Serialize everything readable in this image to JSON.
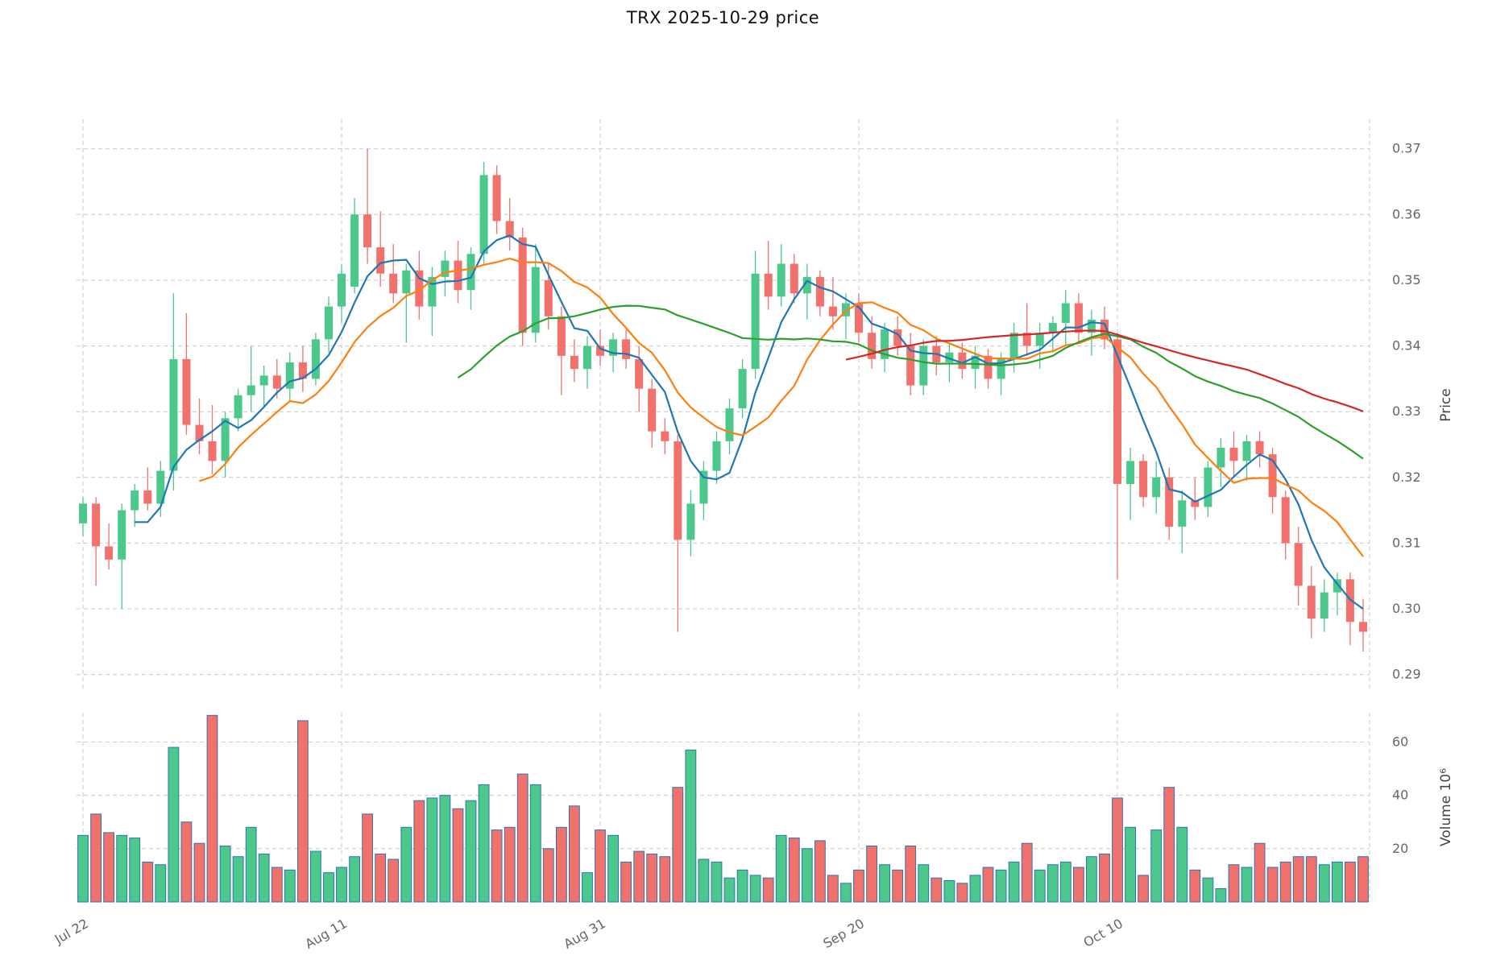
{
  "chart_data": {
    "type": "candlestick",
    "title": "TRX  2025-10-29  price",
    "legend_position": "none",
    "grid": true,
    "colors": {
      "up": "#4dc88c",
      "down": "#f1716d",
      "volume_edge": "#2f74ae",
      "grid": "#c9c9c9",
      "tick_text": "#666666"
    },
    "price_axis": {
      "label": "Price",
      "side": "right",
      "ticks": [
        0.29,
        0.3,
        0.31,
        0.32,
        0.33,
        0.34,
        0.35,
        0.36,
        0.37
      ],
      "range": [
        0.2875,
        0.3745
      ]
    },
    "volume_axis": {
      "label": "Volume  10⁶",
      "side": "right",
      "ticks": [
        20,
        40,
        60
      ],
      "range": [
        0,
        71
      ]
    },
    "x_ticks": [
      {
        "index": 0,
        "label": "Jul 22"
      },
      {
        "index": 20,
        "label": "Aug 11"
      },
      {
        "index": 40,
        "label": "Aug 31"
      },
      {
        "index": 60,
        "label": "Sep 20"
      },
      {
        "index": 80,
        "label": "Oct 10"
      }
    ],
    "moving_averages": [
      {
        "window": 5,
        "color": "#1f77b4"
      },
      {
        "window": 10,
        "color": "#ff7f0e"
      },
      {
        "window": 30,
        "color": "#2ca02c"
      },
      {
        "window": 60,
        "color": "#d62728"
      }
    ],
    "series": {
      "dates": [
        "2025-07-22",
        "2025-07-23",
        "2025-07-24",
        "2025-07-25",
        "2025-07-26",
        "2025-07-27",
        "2025-07-28",
        "2025-07-29",
        "2025-07-30",
        "2025-07-31",
        "2025-08-01",
        "2025-08-02",
        "2025-08-03",
        "2025-08-04",
        "2025-08-05",
        "2025-08-06",
        "2025-08-07",
        "2025-08-08",
        "2025-08-09",
        "2025-08-10",
        "2025-08-11",
        "2025-08-12",
        "2025-08-13",
        "2025-08-14",
        "2025-08-15",
        "2025-08-16",
        "2025-08-17",
        "2025-08-18",
        "2025-08-19",
        "2025-08-20",
        "2025-08-21",
        "2025-08-22",
        "2025-08-23",
        "2025-08-24",
        "2025-08-25",
        "2025-08-26",
        "2025-08-27",
        "2025-08-28",
        "2025-08-29",
        "2025-08-30",
        "2025-08-31",
        "2025-09-01",
        "2025-09-02",
        "2025-09-03",
        "2025-09-04",
        "2025-09-05",
        "2025-09-06",
        "2025-09-07",
        "2025-09-08",
        "2025-09-09",
        "2025-09-10",
        "2025-09-11",
        "2025-09-12",
        "2025-09-13",
        "2025-09-14",
        "2025-09-15",
        "2025-09-16",
        "2025-09-17",
        "2025-09-18",
        "2025-09-19",
        "2025-09-20",
        "2025-09-21",
        "2025-09-22",
        "2025-09-23",
        "2025-09-24",
        "2025-09-25",
        "2025-09-26",
        "2025-09-27",
        "2025-09-28",
        "2025-09-29",
        "2025-09-30",
        "2025-10-01",
        "2025-10-02",
        "2025-10-03",
        "2025-10-04",
        "2025-10-05",
        "2025-10-06",
        "2025-10-07",
        "2025-10-08",
        "2025-10-09",
        "2025-10-10",
        "2025-10-11",
        "2025-10-12",
        "2025-10-13",
        "2025-10-14",
        "2025-10-15",
        "2025-10-16",
        "2025-10-17",
        "2025-10-18",
        "2025-10-19",
        "2025-10-20",
        "2025-10-21",
        "2025-10-22",
        "2025-10-23",
        "2025-10-24",
        "2025-10-25",
        "2025-10-26",
        "2025-10-27",
        "2025-10-28",
        "2025-10-29"
      ],
      "open": [
        0.313,
        0.316,
        0.3095,
        0.3075,
        0.315,
        0.318,
        0.316,
        0.321,
        0.338,
        0.328,
        0.3255,
        0.3225,
        0.329,
        0.3325,
        0.334,
        0.3355,
        0.3335,
        0.3375,
        0.335,
        0.341,
        0.346,
        0.349,
        0.36,
        0.355,
        0.351,
        0.348,
        0.3515,
        0.346,
        0.3505,
        0.353,
        0.3485,
        0.354,
        0.366,
        0.359,
        0.3565,
        0.342,
        0.35,
        0.3445,
        0.3385,
        0.3365,
        0.34,
        0.3385,
        0.341,
        0.338,
        0.3335,
        0.327,
        0.3255,
        0.3105,
        0.316,
        0.321,
        0.3255,
        0.3305,
        0.3365,
        0.351,
        0.3475,
        0.3525,
        0.348,
        0.3505,
        0.346,
        0.3445,
        0.3465,
        0.342,
        0.338,
        0.3425,
        0.34,
        0.334,
        0.34,
        0.3375,
        0.339,
        0.3365,
        0.3385,
        0.335,
        0.338,
        0.342,
        0.34,
        0.342,
        0.3435,
        0.3465,
        0.342,
        0.344,
        0.341,
        0.319,
        0.3225,
        0.317,
        0.32,
        0.3125,
        0.3165,
        0.3155,
        0.3215,
        0.3245,
        0.3225,
        0.3255,
        0.3235,
        0.317,
        0.31,
        0.3035,
        0.2985,
        0.3025,
        0.3045,
        0.298
      ],
      "high": [
        0.317,
        0.317,
        0.313,
        0.316,
        0.319,
        0.3215,
        0.3225,
        0.348,
        0.345,
        0.332,
        0.331,
        0.33,
        0.3335,
        0.34,
        0.337,
        0.338,
        0.339,
        0.34,
        0.342,
        0.3475,
        0.3525,
        0.3625,
        0.37,
        0.3605,
        0.3555,
        0.3525,
        0.3545,
        0.352,
        0.3545,
        0.356,
        0.355,
        0.368,
        0.3675,
        0.3625,
        0.358,
        0.3555,
        0.3525,
        0.346,
        0.341,
        0.3415,
        0.3425,
        0.342,
        0.3425,
        0.34,
        0.335,
        0.329,
        0.3265,
        0.318,
        0.3225,
        0.327,
        0.332,
        0.338,
        0.3545,
        0.356,
        0.3555,
        0.354,
        0.3525,
        0.3515,
        0.3505,
        0.348,
        0.348,
        0.3445,
        0.3435,
        0.3445,
        0.342,
        0.341,
        0.3415,
        0.3405,
        0.3405,
        0.34,
        0.3395,
        0.339,
        0.3435,
        0.3465,
        0.3435,
        0.3445,
        0.3485,
        0.348,
        0.3455,
        0.346,
        0.342,
        0.3245,
        0.3235,
        0.3225,
        0.3215,
        0.318,
        0.32,
        0.3225,
        0.326,
        0.327,
        0.3265,
        0.327,
        0.3245,
        0.318,
        0.3125,
        0.3065,
        0.3045,
        0.3055,
        0.3055,
        0.3015
      ],
      "low": [
        0.311,
        0.3035,
        0.306,
        0.3,
        0.3125,
        0.315,
        0.314,
        0.318,
        0.3265,
        0.3235,
        0.3205,
        0.32,
        0.327,
        0.33,
        0.3305,
        0.332,
        0.3315,
        0.333,
        0.334,
        0.339,
        0.3435,
        0.348,
        0.3525,
        0.349,
        0.3465,
        0.3405,
        0.344,
        0.3415,
        0.3475,
        0.3465,
        0.3455,
        0.3525,
        0.357,
        0.3545,
        0.34,
        0.3405,
        0.3425,
        0.3325,
        0.3345,
        0.3335,
        0.337,
        0.336,
        0.3365,
        0.33,
        0.3245,
        0.3235,
        0.2965,
        0.308,
        0.3135,
        0.319,
        0.3235,
        0.329,
        0.335,
        0.3455,
        0.346,
        0.3465,
        0.344,
        0.3445,
        0.3425,
        0.341,
        0.3405,
        0.3365,
        0.336,
        0.3385,
        0.3325,
        0.3325,
        0.3355,
        0.3345,
        0.335,
        0.3335,
        0.3335,
        0.3325,
        0.336,
        0.3385,
        0.3365,
        0.339,
        0.34,
        0.3405,
        0.3385,
        0.3395,
        0.3045,
        0.3135,
        0.3155,
        0.3145,
        0.3105,
        0.3085,
        0.3135,
        0.314,
        0.3185,
        0.32,
        0.3195,
        0.3215,
        0.3145,
        0.3075,
        0.3005,
        0.2955,
        0.2965,
        0.299,
        0.2945,
        0.2935
      ],
      "close": [
        0.316,
        0.3095,
        0.3075,
        0.315,
        0.318,
        0.316,
        0.321,
        0.338,
        0.328,
        0.3255,
        0.3225,
        0.329,
        0.3325,
        0.334,
        0.3355,
        0.3335,
        0.3375,
        0.335,
        0.341,
        0.346,
        0.351,
        0.36,
        0.355,
        0.351,
        0.348,
        0.3515,
        0.346,
        0.3505,
        0.353,
        0.3485,
        0.354,
        0.366,
        0.359,
        0.3565,
        0.342,
        0.352,
        0.3445,
        0.3385,
        0.3365,
        0.34,
        0.3385,
        0.341,
        0.338,
        0.3335,
        0.327,
        0.3255,
        0.3105,
        0.316,
        0.321,
        0.3255,
        0.3305,
        0.3365,
        0.351,
        0.3475,
        0.3525,
        0.348,
        0.3505,
        0.346,
        0.3445,
        0.3465,
        0.342,
        0.338,
        0.3425,
        0.34,
        0.334,
        0.34,
        0.3375,
        0.339,
        0.3365,
        0.3385,
        0.335,
        0.338,
        0.342,
        0.34,
        0.342,
        0.3435,
        0.3465,
        0.342,
        0.344,
        0.341,
        0.319,
        0.3225,
        0.317,
        0.32,
        0.3125,
        0.3165,
        0.3155,
        0.3215,
        0.3245,
        0.3225,
        0.3255,
        0.3235,
        0.317,
        0.31,
        0.3035,
        0.2985,
        0.3025,
        0.3045,
        0.298,
        0.2965
      ],
      "volume": [
        25,
        33,
        26,
        25,
        24,
        15,
        14,
        58,
        30,
        22,
        70,
        21,
        17,
        28,
        18,
        13,
        12,
        68,
        19,
        11,
        13,
        17,
        33,
        18,
        16,
        28,
        38,
        39,
        40,
        35,
        38,
        44,
        27,
        28,
        48,
        44,
        20,
        28,
        36,
        11,
        27,
        25,
        15,
        19,
        18,
        17,
        43,
        57,
        16,
        15,
        9,
        12,
        10,
        9,
        25,
        24,
        20,
        23,
        10,
        7,
        12,
        21,
        14,
        12,
        21,
        14,
        9,
        8,
        7,
        10,
        13,
        12,
        15,
        22,
        12,
        14,
        15,
        13,
        17,
        18,
        39,
        28,
        10,
        27,
        43,
        28,
        12,
        9,
        5,
        14,
        13,
        22,
        13,
        15,
        17,
        17,
        14,
        15,
        15,
        17
      ]
    }
  }
}
